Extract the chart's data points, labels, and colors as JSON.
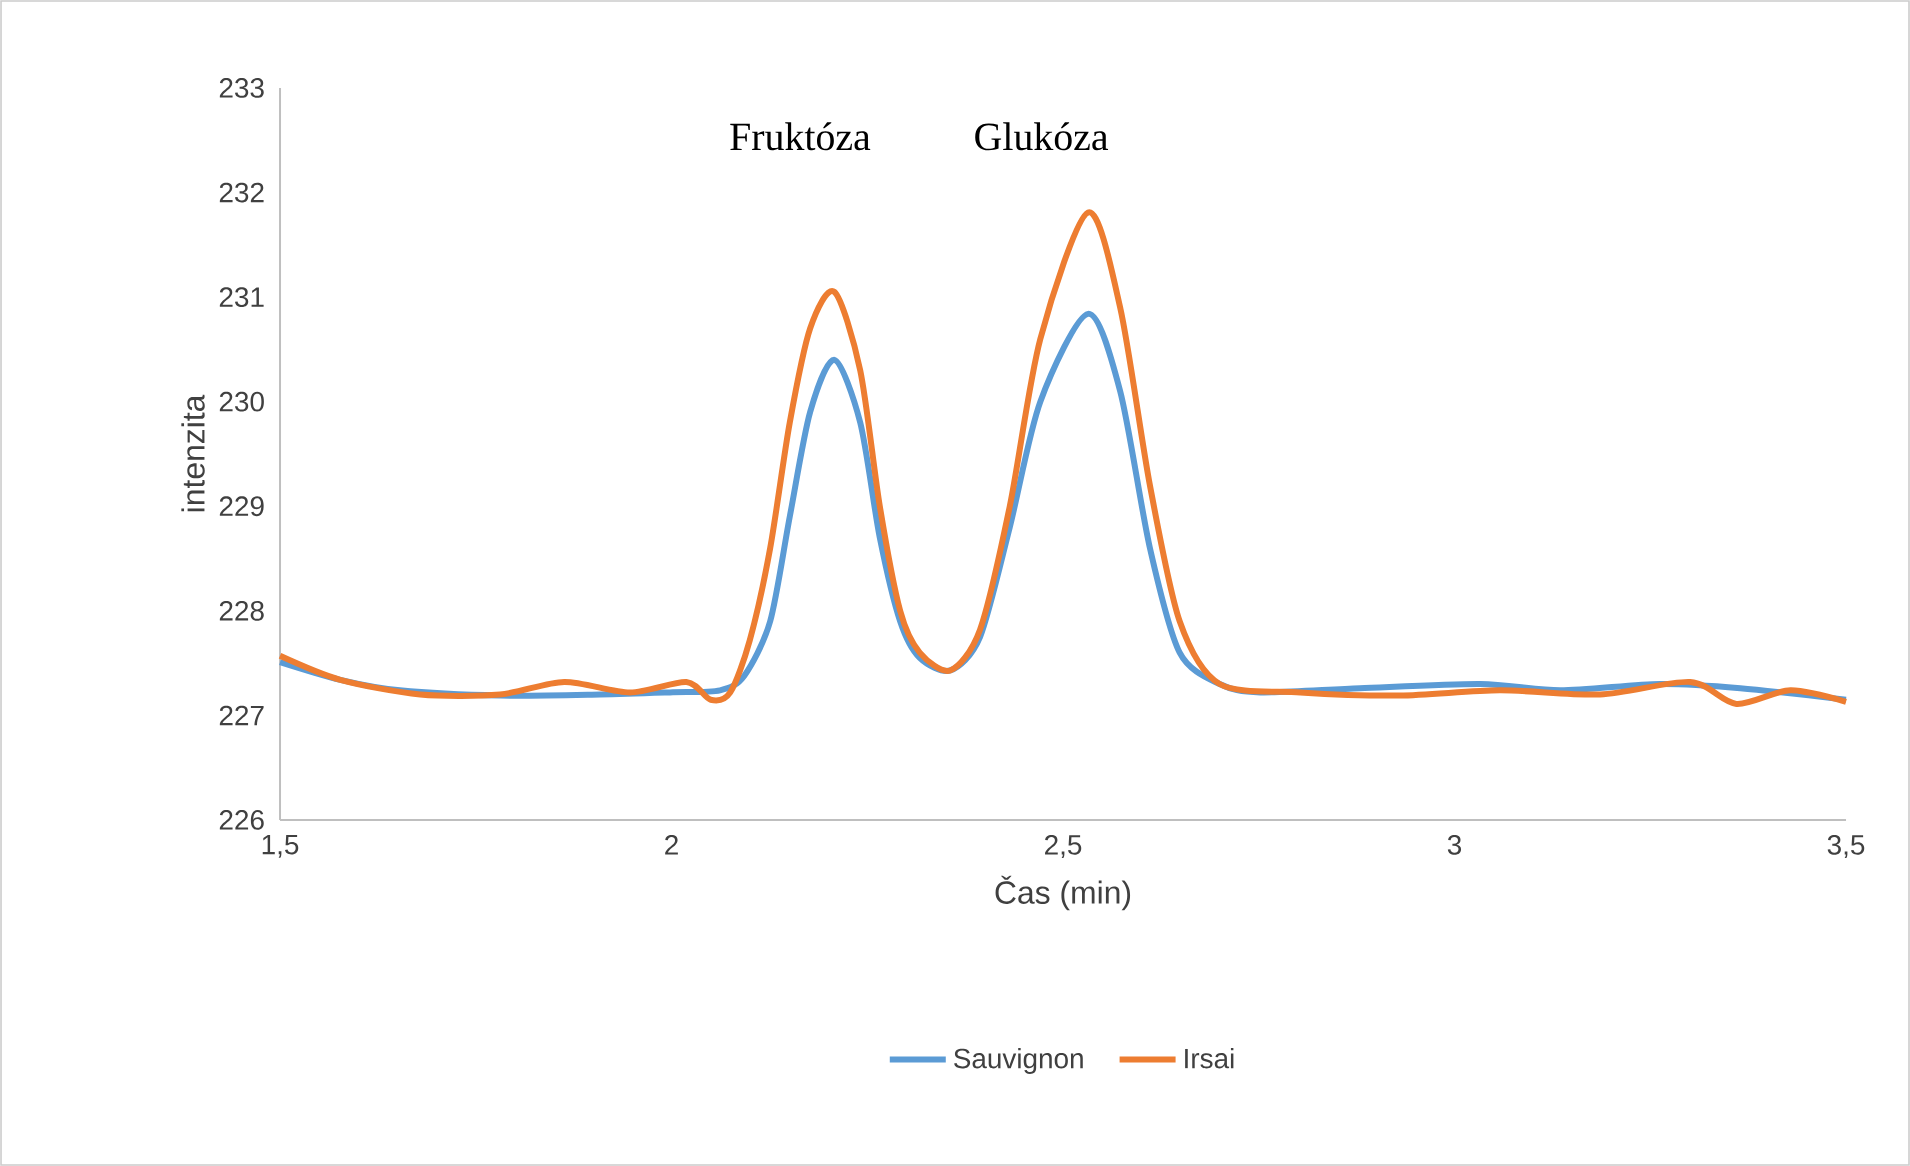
{
  "chart_data": {
    "type": "line",
    "xlabel": "Čas (min)",
    "ylabel": "intenzita",
    "xlim": [
      1.5,
      3.5
    ],
    "ylim": [
      226,
      233
    ],
    "xticks": [
      {
        "value": 1.5,
        "label": "1,5"
      },
      2,
      {
        "value": 2.5,
        "label": "2,5"
      },
      3,
      {
        "value": 3.5,
        "label": "3,5"
      }
    ],
    "yticks": [
      226,
      227,
      228,
      229,
      230,
      231,
      232,
      233
    ],
    "grid": false,
    "legend": "bottom",
    "marker": "none",
    "line_style": "solid",
    "annotations": [
      "Fruktóza",
      "Glukóza"
    ],
    "series": [
      {
        "name": "Sauvignon",
        "color": "#5b9bd5",
        "x": [
          1.5,
          1.577,
          1.653,
          1.781,
          1.909,
          1.998,
          2.062,
          2.093,
          2.126,
          2.151,
          2.177,
          2.208,
          2.241,
          2.266,
          2.292,
          2.317,
          2.356,
          2.394,
          2.432,
          2.471,
          2.532,
          2.573,
          2.611,
          2.649,
          2.7,
          2.752,
          2.879,
          3.033,
          3.135,
          3.262,
          3.365,
          3.5
        ],
        "values": [
          227.51,
          227.34,
          227.24,
          227.19,
          227.2,
          227.22,
          227.24,
          227.38,
          227.9,
          228.9,
          229.9,
          230.4,
          229.8,
          228.7,
          227.9,
          227.55,
          227.43,
          227.75,
          228.8,
          230.0,
          230.84,
          230.1,
          228.6,
          227.6,
          227.3,
          227.22,
          227.26,
          227.3,
          227.24,
          227.3,
          227.26,
          227.15
        ]
      },
      {
        "name": "Irsai",
        "color": "#ed7d31",
        "x": [
          1.5,
          1.577,
          1.679,
          1.781,
          1.863,
          1.947,
          2.019,
          2.05,
          2.075,
          2.1,
          2.126,
          2.151,
          2.177,
          2.208,
          2.241,
          2.266,
          2.292,
          2.317,
          2.356,
          2.394,
          2.432,
          2.471,
          2.532,
          2.573,
          2.611,
          2.649,
          2.7,
          2.803,
          2.93,
          3.058,
          3.186,
          3.301,
          3.36,
          3.429,
          3.5
        ],
        "values": [
          227.57,
          227.34,
          227.2,
          227.2,
          227.32,
          227.22,
          227.32,
          227.15,
          227.22,
          227.72,
          228.6,
          229.8,
          230.7,
          231.05,
          230.3,
          229.0,
          228.0,
          227.6,
          227.43,
          227.82,
          229.0,
          230.6,
          231.81,
          230.9,
          229.2,
          227.9,
          227.3,
          227.22,
          227.19,
          227.24,
          227.2,
          227.32,
          227.11,
          227.24,
          227.13
        ]
      }
    ]
  }
}
